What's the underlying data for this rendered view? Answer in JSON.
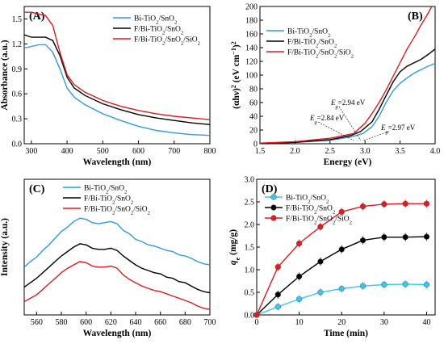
{
  "colors": {
    "blue": "#2f9ae6",
    "black": "#000000",
    "red": "#e41a1c",
    "cyan": "#3cc6ef"
  },
  "legend": {
    "bi": [
      "Bi-TiO",
      "2",
      "/SnO",
      "2",
      ""
    ],
    "fbi": [
      "F/Bi-TiO",
      "2",
      "/SnO",
      "2",
      ""
    ],
    "fbisi": [
      "F/Bi-TiO",
      "2",
      "/SnO",
      "2",
      "/SiO",
      "2"
    ]
  },
  "chart_data": [
    {
      "panel": "(A)",
      "type": "line",
      "xlabel": "Wavelength (nm)",
      "ylabel": "Absorbance (a.u.)",
      "xlim": [
        280,
        800
      ],
      "ylim": [
        0,
        1.65
      ],
      "xticks": [
        "300",
        "400",
        "500",
        "600",
        "700",
        "800"
      ],
      "yticks": [
        "0.0",
        "0.3",
        "0.6",
        "0.9",
        "1.2",
        "1.5"
      ],
      "legend_position": "top-right",
      "series": [
        {
          "name_key": "bi",
          "color_key": "blue",
          "x": [
            280,
            300,
            320,
            340,
            360,
            380,
            400,
            420,
            450,
            500,
            550,
            600,
            650,
            700,
            750,
            800
          ],
          "y": [
            1.15,
            1.17,
            1.19,
            1.19,
            1.1,
            0.9,
            0.67,
            0.56,
            0.47,
            0.36,
            0.28,
            0.21,
            0.16,
            0.13,
            0.11,
            0.1
          ]
        },
        {
          "name_key": "fbi",
          "color_key": "black",
          "x": [
            280,
            300,
            320,
            340,
            360,
            380,
            400,
            420,
            450,
            500,
            550,
            600,
            650,
            700,
            750,
            800
          ],
          "y": [
            1.31,
            1.28,
            1.28,
            1.28,
            1.24,
            1.06,
            0.8,
            0.67,
            0.58,
            0.48,
            0.41,
            0.35,
            0.31,
            0.28,
            0.25,
            0.23
          ]
        },
        {
          "name_key": "fbisi",
          "color_key": "red",
          "x": [
            280,
            300,
            320,
            340,
            360,
            380,
            400,
            420,
            450,
            500,
            550,
            600,
            650,
            700,
            750,
            800
          ],
          "y": [
            1.58,
            1.58,
            1.56,
            1.54,
            1.42,
            1.1,
            0.83,
            0.71,
            0.62,
            0.52,
            0.45,
            0.4,
            0.36,
            0.33,
            0.31,
            0.29
          ]
        }
      ]
    },
    {
      "panel": "(B)",
      "type": "line",
      "xlabel": "Energy (eV)",
      "ylabel": [
        "(αhν)",
        "2",
        " (eV cm",
        "−1",
        ")",
        "2"
      ],
      "xlim": [
        1.5,
        4.0
      ],
      "ylim": [
        0,
        200
      ],
      "xticks": [
        "1.5",
        "2.0",
        "2.5",
        "3.0",
        "3.5",
        "4.0"
      ],
      "yticks": [
        "0",
        "20",
        "40",
        "60",
        "80",
        "100",
        "120",
        "140",
        "160",
        "180",
        "200"
      ],
      "legend_position": "top-left",
      "annotations": [
        {
          "text": "2.94 eV",
          "color_key": "black",
          "at": [
            2.94,
            0
          ]
        },
        {
          "text": "2.84 eV",
          "color_key": "red",
          "at": [
            2.84,
            0
          ]
        },
        {
          "text": "2.97 eV",
          "color_key": "blue",
          "at": [
            2.97,
            0
          ]
        }
      ],
      "series": [
        {
          "name_key": "bi",
          "color_key": "blue",
          "x": [
            1.5,
            2.0,
            2.5,
            2.8,
            2.97,
            3.1,
            3.2,
            3.3,
            3.4,
            3.5,
            3.6,
            3.7,
            3.8,
            3.9,
            4.0
          ],
          "y": [
            0.5,
            2,
            5,
            10,
            15,
            25,
            40,
            60,
            77,
            88,
            96,
            103,
            108,
            113,
            117
          ]
        },
        {
          "name_key": "fbi",
          "color_key": "black",
          "x": [
            1.5,
            2.0,
            2.5,
            2.8,
            2.94,
            3.1,
            3.2,
            3.3,
            3.4,
            3.5,
            3.6,
            3.7,
            3.8,
            3.9,
            4.0
          ],
          "y": [
            0.5,
            2,
            6,
            12,
            18,
            32,
            50,
            70,
            90,
            105,
            113,
            118,
            123,
            130,
            138
          ]
        },
        {
          "name_key": "fbisi",
          "color_key": "red",
          "x": [
            1.5,
            2.0,
            2.5,
            2.84,
            3.0,
            3.1,
            3.2,
            3.3,
            3.4,
            3.5,
            3.6,
            3.7,
            3.8,
            3.9,
            3.95
          ],
          "y": [
            1,
            3,
            8,
            15,
            30,
            44,
            60,
            78,
            98,
            118,
            138,
            155,
            173,
            190,
            200
          ]
        }
      ]
    },
    {
      "panel": "(C)",
      "type": "line",
      "xlabel": "Wavelength (nm)",
      "ylabel": "Intensity (a.u.)",
      "xlim": [
        550,
        700
      ],
      "xticks": [
        "560",
        "580",
        "600",
        "620",
        "640",
        "660",
        "680",
        "700"
      ],
      "legend_position": "top-right",
      "series": [
        {
          "name_key": "bi",
          "color_key": "blue",
          "x": [
            550,
            555,
            560,
            565,
            570,
            575,
            580,
            585,
            590,
            595,
            600,
            605,
            610,
            615,
            620,
            625,
            630,
            635,
            640,
            645,
            650,
            655,
            660,
            665,
            670,
            675,
            680,
            685,
            690,
            695,
            700
          ],
          "y": [
            0.47,
            0.52,
            0.56,
            0.62,
            0.67,
            0.73,
            0.79,
            0.83,
            0.88,
            0.91,
            0.9,
            0.87,
            0.86,
            0.87,
            0.88,
            0.86,
            0.8,
            0.77,
            0.72,
            0.7,
            0.67,
            0.66,
            0.64,
            0.62,
            0.61,
            0.58,
            0.57,
            0.55,
            0.52,
            0.5,
            0.49
          ]
        },
        {
          "name_key": "fbi",
          "color_key": "black",
          "x": [
            550,
            555,
            560,
            565,
            570,
            575,
            580,
            585,
            590,
            595,
            600,
            605,
            610,
            615,
            620,
            625,
            630,
            635,
            640,
            645,
            650,
            655,
            660,
            665,
            670,
            675,
            680,
            685,
            690,
            695,
            700
          ],
          "y": [
            0.29,
            0.33,
            0.37,
            0.42,
            0.47,
            0.52,
            0.57,
            0.61,
            0.65,
            0.68,
            0.67,
            0.64,
            0.63,
            0.63,
            0.64,
            0.62,
            0.57,
            0.53,
            0.49,
            0.46,
            0.44,
            0.42,
            0.41,
            0.38,
            0.37,
            0.34,
            0.33,
            0.3,
            0.27,
            0.25,
            0.24
          ]
        },
        {
          "name_key": "fbisi",
          "color_key": "red",
          "x": [
            550,
            555,
            560,
            565,
            570,
            575,
            580,
            585,
            590,
            595,
            600,
            605,
            610,
            615,
            620,
            625,
            630,
            635,
            640,
            645,
            650,
            655,
            660,
            665,
            670,
            675,
            680,
            685,
            690,
            695,
            700
          ],
          "y": [
            0.16,
            0.19,
            0.22,
            0.27,
            0.32,
            0.37,
            0.42,
            0.46,
            0.49,
            0.52,
            0.51,
            0.48,
            0.47,
            0.47,
            0.48,
            0.46,
            0.4,
            0.36,
            0.33,
            0.3,
            0.28,
            0.26,
            0.25,
            0.23,
            0.21,
            0.19,
            0.17,
            0.15,
            0.12,
            0.1,
            0.09
          ]
        }
      ]
    },
    {
      "panel": "(D)",
      "type": "scatter",
      "xlabel": "Time (min)",
      "ylabel": [
        "q",
        "e",
        " (mg/g)"
      ],
      "xlim": [
        0,
        42
      ],
      "ylim": [
        0,
        3.0
      ],
      "xticks": [
        "0",
        "10",
        "20",
        "30",
        "40"
      ],
      "yticks": [
        "0.0",
        "0.5",
        "1.0",
        "1.5",
        "2.0",
        "2.5",
        "3.0"
      ],
      "legend_position": "top-left",
      "series": [
        {
          "name_key": "bi",
          "color_key": "cyan",
          "x": [
            0,
            5,
            10,
            15,
            20,
            25,
            30,
            35,
            40
          ],
          "y": [
            0,
            0.18,
            0.35,
            0.5,
            0.58,
            0.64,
            0.67,
            0.68,
            0.67
          ]
        },
        {
          "name_key": "fbi",
          "color_key": "black",
          "x": [
            0,
            5,
            10,
            15,
            20,
            25,
            30,
            35,
            40
          ],
          "y": [
            0,
            0.45,
            0.85,
            1.18,
            1.45,
            1.65,
            1.72,
            1.72,
            1.73
          ]
        },
        {
          "name_key": "fbisi",
          "color_key": "red",
          "x": [
            0,
            5,
            10,
            15,
            20,
            25,
            30,
            35,
            40
          ],
          "y": [
            0,
            1.06,
            1.58,
            1.95,
            2.28,
            2.4,
            2.45,
            2.46,
            2.46
          ]
        }
      ]
    }
  ]
}
